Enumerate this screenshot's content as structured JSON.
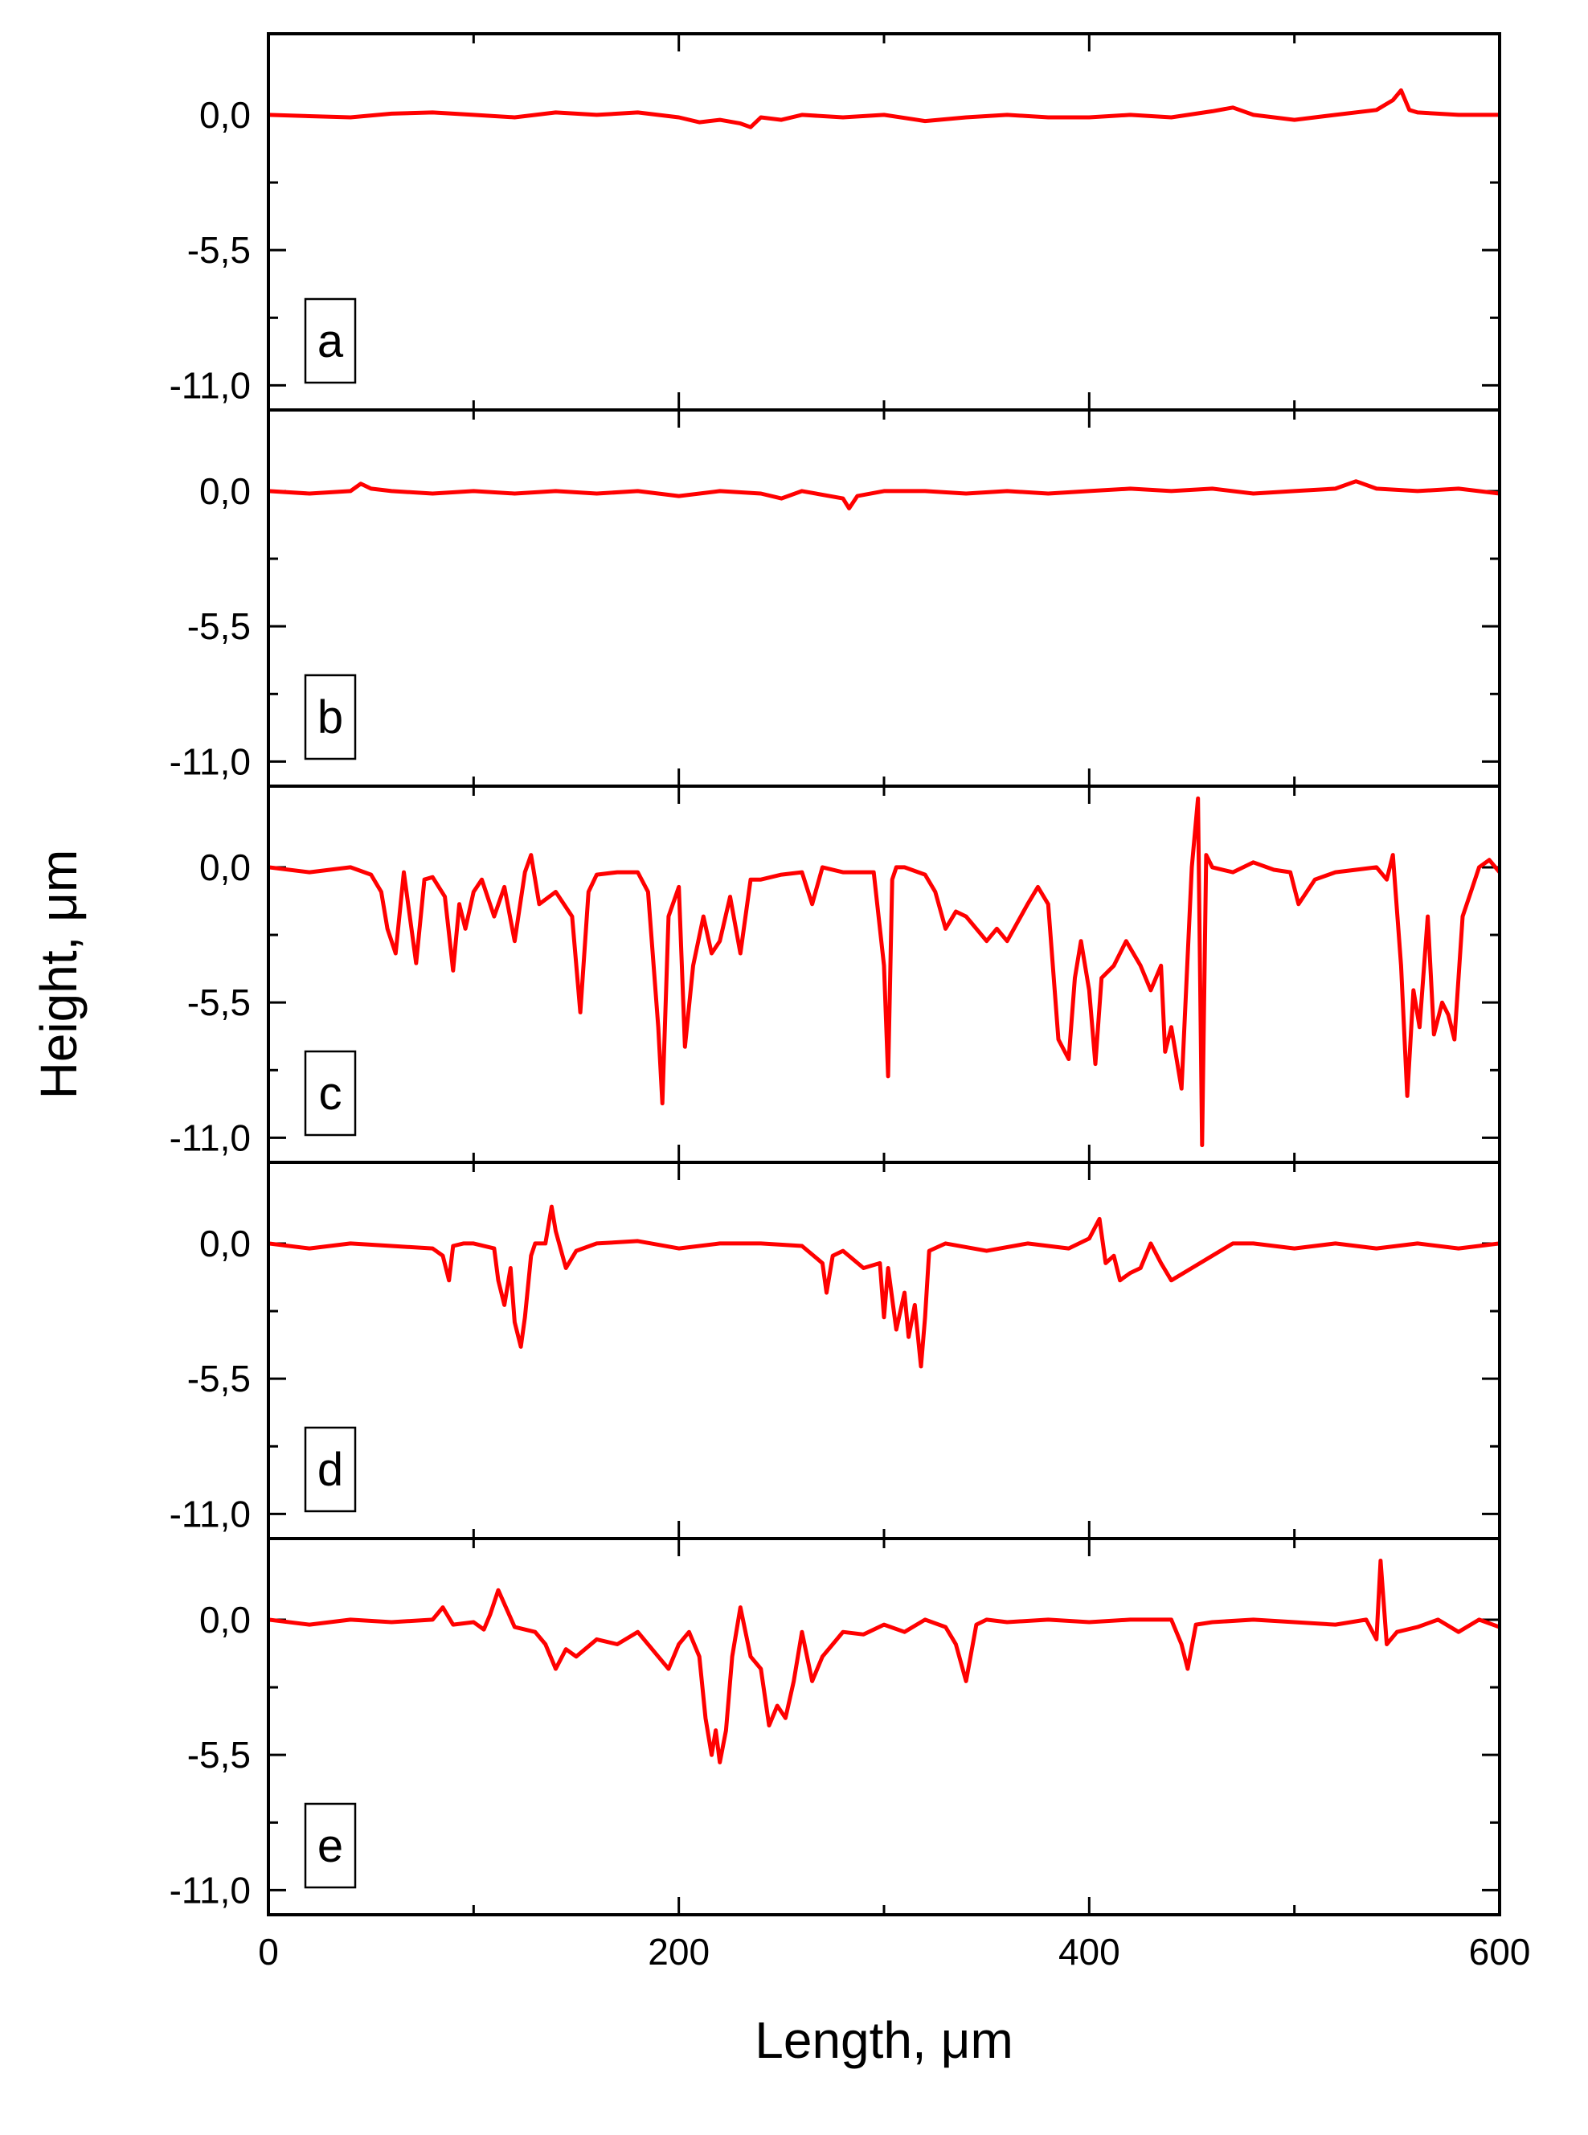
{
  "chart_data": {
    "type": "line",
    "layout": "five vertically stacked panels sharing one x axis",
    "xlabel": "Length, μm",
    "ylabel": "Height, μm",
    "xlim": [
      0,
      600
    ],
    "xticks": [
      "0",
      "200",
      "400",
      "600"
    ],
    "ylim": [
      -12.0,
      3.3
    ],
    "yticks": [
      "0,0",
      "-5,5",
      "-11,0"
    ],
    "grid": false,
    "line_color": "#ff0000",
    "panels": [
      {
        "label": "a",
        "x": [
          0,
          20,
          40,
          60,
          80,
          100,
          120,
          140,
          160,
          180,
          200,
          210,
          220,
          230,
          235,
          240,
          250,
          260,
          280,
          300,
          320,
          340,
          360,
          380,
          400,
          420,
          440,
          460,
          470,
          480,
          500,
          520,
          540,
          548,
          552,
          556,
          560,
          580,
          600
        ],
        "y": [
          0.0,
          -0.05,
          -0.1,
          0.05,
          0.1,
          0.0,
          -0.1,
          0.1,
          0.0,
          0.1,
          -0.1,
          -0.3,
          -0.2,
          -0.35,
          -0.5,
          -0.1,
          -0.2,
          0.0,
          -0.1,
          0.0,
          -0.25,
          -0.1,
          0.0,
          -0.1,
          -0.1,
          0.0,
          -0.1,
          0.15,
          0.3,
          0.0,
          -0.2,
          0.0,
          0.2,
          0.6,
          1.0,
          0.2,
          0.1,
          0.0,
          0.0
        ]
      },
      {
        "label": "b",
        "x": [
          0,
          20,
          40,
          45,
          50,
          60,
          80,
          100,
          120,
          140,
          160,
          180,
          200,
          220,
          240,
          250,
          260,
          280,
          283,
          287,
          300,
          320,
          340,
          360,
          380,
          400,
          420,
          440,
          460,
          480,
          500,
          520,
          530,
          540,
          560,
          580,
          600
        ],
        "y": [
          0.0,
          -0.1,
          0.0,
          0.3,
          0.1,
          0.0,
          -0.1,
          0.0,
          -0.1,
          0.0,
          -0.1,
          0.0,
          -0.2,
          0.0,
          -0.1,
          -0.3,
          0.0,
          -0.3,
          -0.7,
          -0.2,
          0.0,
          0.0,
          -0.1,
          0.0,
          -0.1,
          0.0,
          0.1,
          0.0,
          0.1,
          -0.1,
          0.0,
          0.1,
          0.4,
          0.1,
          0.0,
          0.1,
          -0.1
        ]
      },
      {
        "label": "c",
        "x": [
          0,
          20,
          40,
          50,
          55,
          58,
          62,
          66,
          72,
          76,
          80,
          86,
          90,
          93,
          96,
          100,
          104,
          110,
          115,
          120,
          125,
          128,
          132,
          140,
          148,
          152,
          156,
          160,
          170,
          180,
          185,
          190,
          192,
          195,
          200,
          203,
          207,
          212,
          216,
          220,
          225,
          230,
          235,
          240,
          250,
          260,
          265,
          270,
          280,
          295,
          300,
          302,
          304,
          306,
          310,
          320,
          325,
          330,
          335,
          340,
          350,
          355,
          360,
          370,
          375,
          380,
          385,
          390,
          393,
          396,
          400,
          403,
          406,
          412,
          418,
          425,
          430,
          435,
          437,
          440,
          445,
          450,
          453,
          455,
          457,
          460,
          470,
          480,
          490,
          498,
          502,
          510,
          520,
          530,
          540,
          545,
          548,
          552,
          555,
          558,
          561,
          565,
          568,
          572,
          575,
          578,
          582,
          586,
          590,
          595,
          600
        ],
        "y": [
          0.0,
          -0.2,
          0.0,
          -0.3,
          -1.0,
          -2.5,
          -3.5,
          -0.2,
          -3.9,
          -0.5,
          -0.4,
          -1.2,
          -4.2,
          -1.5,
          -2.5,
          -1.0,
          -0.5,
          -2.0,
          -0.8,
          -3.0,
          -0.2,
          0.5,
          -1.5,
          -1.0,
          -2.0,
          -5.9,
          -1.0,
          -0.3,
          -0.2,
          -0.2,
          -1.0,
          -6.5,
          -9.6,
          -2.0,
          -0.8,
          -7.3,
          -4.0,
          -2.0,
          -3.5,
          -3.0,
          -1.2,
          -3.5,
          -0.5,
          -0.5,
          -0.3,
          -0.2,
          -1.5,
          0.0,
          -0.2,
          -0.2,
          -4.0,
          -8.5,
          -0.5,
          0.0,
          0.0,
          -0.3,
          -1.0,
          -2.5,
          -1.8,
          -2.0,
          -3.0,
          -2.5,
          -3.0,
          -1.5,
          -0.8,
          -1.5,
          -7.0,
          -7.8,
          -4.5,
          -3.0,
          -5.0,
          -8.0,
          -4.5,
          -4.0,
          -3.0,
          -4.0,
          -5.0,
          -4.0,
          -7.5,
          -6.5,
          -9.0,
          0.0,
          2.8,
          -11.3,
          0.5,
          0.0,
          -0.2,
          0.2,
          -0.1,
          -0.2,
          -1.5,
          -0.5,
          -0.2,
          -0.1,
          0.0,
          -0.5,
          0.5,
          -4.0,
          -9.3,
          -5.0,
          -6.5,
          -2.0,
          -6.8,
          -5.5,
          -6.0,
          -7.0,
          -2.0,
          -1.0,
          0.0,
          0.3,
          -0.2
        ]
      },
      {
        "label": "d",
        "x": [
          0,
          20,
          40,
          60,
          80,
          85,
          88,
          90,
          95,
          100,
          110,
          112,
          115,
          118,
          120,
          123,
          125,
          128,
          130,
          135,
          138,
          140,
          145,
          150,
          160,
          180,
          200,
          220,
          240,
          260,
          270,
          272,
          275,
          280,
          290,
          298,
          300,
          302,
          306,
          310,
          312,
          315,
          318,
          320,
          322,
          330,
          350,
          370,
          390,
          400,
          405,
          408,
          412,
          415,
          420,
          425,
          430,
          435,
          440,
          450,
          460,
          470,
          480,
          500,
          520,
          540,
          560,
          580,
          600
        ],
        "y": [
          0.0,
          -0.2,
          0.0,
          -0.1,
          -0.2,
          -0.5,
          -1.5,
          -0.1,
          0.0,
          0.0,
          -0.2,
          -1.5,
          -2.5,
          -1.0,
          -3.2,
          -4.2,
          -3.0,
          -0.5,
          0.0,
          0.0,
          1.5,
          0.5,
          -1.0,
          -0.3,
          0.0,
          0.1,
          -0.2,
          0.0,
          0.0,
          -0.1,
          -0.8,
          -2.0,
          -0.5,
          -0.3,
          -1.0,
          -0.8,
          -3.0,
          -1.0,
          -3.5,
          -2.0,
          -3.8,
          -2.5,
          -5.0,
          -3.0,
          -0.3,
          0.0,
          -0.3,
          0.0,
          -0.2,
          0.2,
          1.0,
          -0.8,
          -0.5,
          -1.5,
          -1.2,
          -1.0,
          0.0,
          -0.8,
          -1.5,
          -1.0,
          -0.5,
          0.0,
          0.0,
          -0.2,
          0.0,
          -0.2,
          0.0,
          -0.2,
          0.0
        ]
      },
      {
        "label": "e",
        "x": [
          0,
          20,
          40,
          60,
          80,
          85,
          90,
          100,
          105,
          108,
          112,
          120,
          130,
          135,
          140,
          145,
          150,
          160,
          170,
          180,
          190,
          195,
          200,
          205,
          210,
          213,
          216,
          218,
          220,
          223,
          226,
          230,
          235,
          240,
          244,
          248,
          252,
          256,
          260,
          265,
          270,
          275,
          280,
          290,
          300,
          310,
          320,
          330,
          335,
          340,
          345,
          350,
          360,
          380,
          400,
          420,
          440,
          445,
          448,
          452,
          460,
          480,
          500,
          520,
          535,
          540,
          542,
          545,
          550,
          560,
          570,
          580,
          590,
          600
        ],
        "y": [
          0.0,
          -0.2,
          0.0,
          -0.1,
          0.0,
          0.5,
          -0.2,
          -0.1,
          -0.4,
          0.2,
          1.2,
          -0.3,
          -0.5,
          -1.0,
          -2.0,
          -1.2,
          -1.5,
          -0.8,
          -1.0,
          -0.5,
          -1.5,
          -2.0,
          -1.0,
          -0.5,
          -1.5,
          -4.0,
          -5.5,
          -4.5,
          -5.8,
          -4.5,
          -1.5,
          0.5,
          -1.5,
          -2.0,
          -4.3,
          -3.5,
          -4.0,
          -2.5,
          -0.5,
          -2.5,
          -1.5,
          -1.0,
          -0.5,
          -0.6,
          -0.2,
          -0.5,
          0.0,
          -0.3,
          -1.0,
          -2.5,
          -0.2,
          0.0,
          -0.1,
          0.0,
          -0.1,
          0.0,
          0.0,
          -1.0,
          -2.0,
          -0.2,
          -0.1,
          0.0,
          -0.1,
          -0.2,
          0.0,
          -0.8,
          2.4,
          -1.0,
          -0.5,
          -0.3,
          0.0,
          -0.5,
          0.0,
          -0.3
        ]
      }
    ]
  }
}
